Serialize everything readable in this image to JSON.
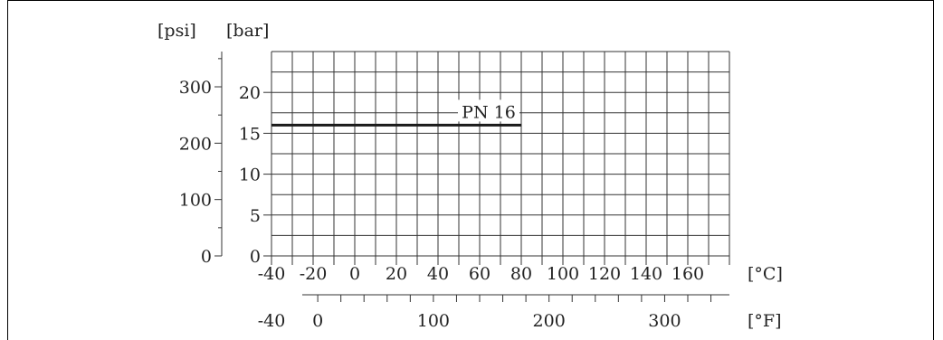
{
  "chart_data": {
    "type": "line",
    "title": "",
    "y_axis_left_unit": "[psi]",
    "y_axis_right_unit": "[bar]",
    "x_axis_primary_unit": "[°C]",
    "x_axis_secondary_unit": "[°F]",
    "psi_ticks": [
      0,
      100,
      200,
      300
    ],
    "bar_ticks": [
      0,
      5,
      10,
      15,
      20
    ],
    "celsius_ticks": [
      -40,
      -20,
      0,
      20,
      40,
      60,
      80,
      100,
      120,
      140,
      160
    ],
    "fahrenheit_ticks": [
      -40,
      0,
      100,
      200,
      300
    ],
    "xlim": [
      -40,
      180
    ],
    "ylim": [
      0,
      25
    ],
    "grid": true,
    "series": [
      {
        "name": "PN 16",
        "x": [
          -40,
          80
        ],
        "y": [
          16,
          16
        ]
      }
    ]
  }
}
